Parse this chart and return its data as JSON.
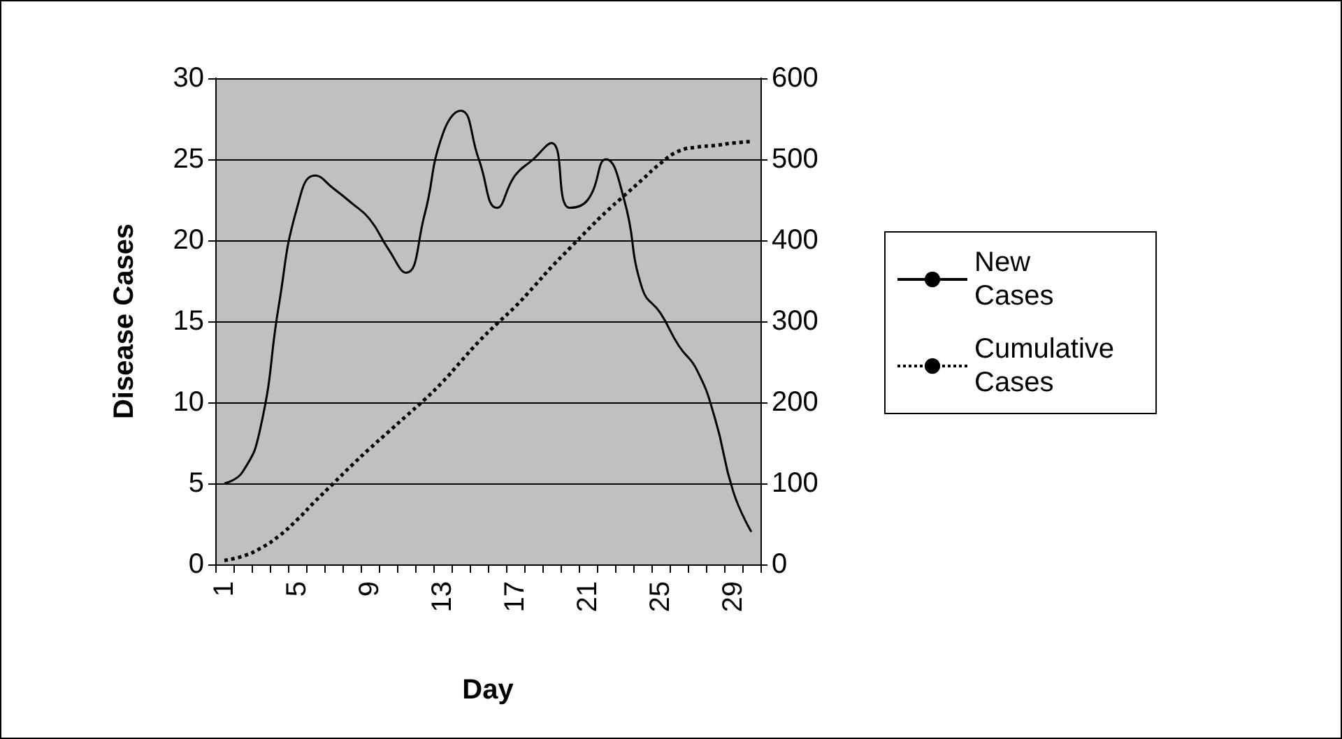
{
  "chart_data": {
    "type": "line",
    "xlabel": "Day",
    "ylabel": "Disease Cases",
    "categories": [
      "1",
      null,
      null,
      null,
      "5",
      null,
      null,
      null,
      "9",
      null,
      null,
      null,
      "13",
      null,
      null,
      null,
      "17",
      null,
      null,
      null,
      "21",
      null,
      null,
      null,
      "25",
      null,
      null,
      null,
      "29",
      null
    ],
    "series": [
      {
        "name": "New Cases",
        "color": "#000000",
        "line_style": "solid",
        "values": [
          5,
          5.7,
          8.5,
          16,
          22,
          24,
          23.2,
          22.3,
          21.3,
          19.5,
          18,
          21.5,
          26.5,
          28,
          25,
          22,
          24,
          25,
          26,
          22,
          22.5,
          25,
          22.5,
          17,
          15.5,
          13.5,
          12,
          9,
          4.5,
          2
        ]
      },
      {
        "name": "Cumulative Cases",
        "color": "#000000",
        "line_style": "dotted",
        "axis": "y2",
        "values": [
          5,
          10,
          20,
          35,
          55,
          78,
          100,
          122,
          143,
          163,
          183,
          203,
          225,
          250,
          275,
          297,
          318,
          342,
          367,
          390,
          413,
          435,
          455,
          475,
          495,
          510,
          515,
          517,
          520,
          522
        ]
      }
    ],
    "ylim": [
      0,
      30
    ],
    "yticks": [
      0,
      5,
      10,
      15,
      20,
      25,
      30
    ],
    "y2lim": [
      0,
      600
    ],
    "y2ticks": [
      0,
      100,
      200,
      300,
      400,
      500,
      600
    ],
    "grid": "y",
    "legend": "right",
    "marker": "none"
  }
}
